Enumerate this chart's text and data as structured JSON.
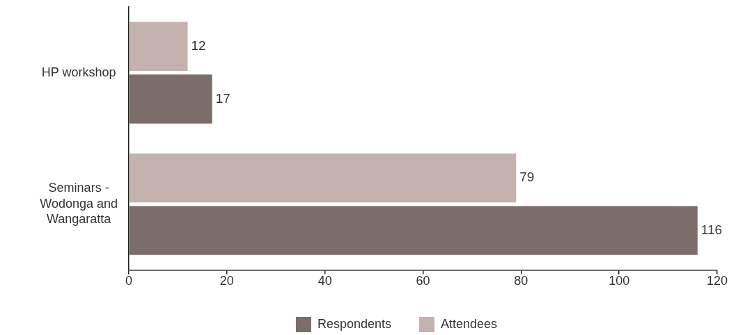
{
  "chart_data": {
    "type": "bar",
    "orientation": "horizontal",
    "categories": [
      "HP workshop",
      "Seminars - Wodonga and Wangaratta"
    ],
    "series": [
      {
        "name": "Respondents",
        "color": "#7b6d6a",
        "values": [
          17,
          116
        ]
      },
      {
        "name": "Attendees",
        "color": "#c4b2af",
        "values": [
          12,
          79
        ]
      }
    ],
    "xlim": [
      0,
      120
    ],
    "xticks": [
      0,
      20,
      40,
      60,
      80,
      100,
      120
    ],
    "data_labels": true,
    "legend": "bottom"
  }
}
